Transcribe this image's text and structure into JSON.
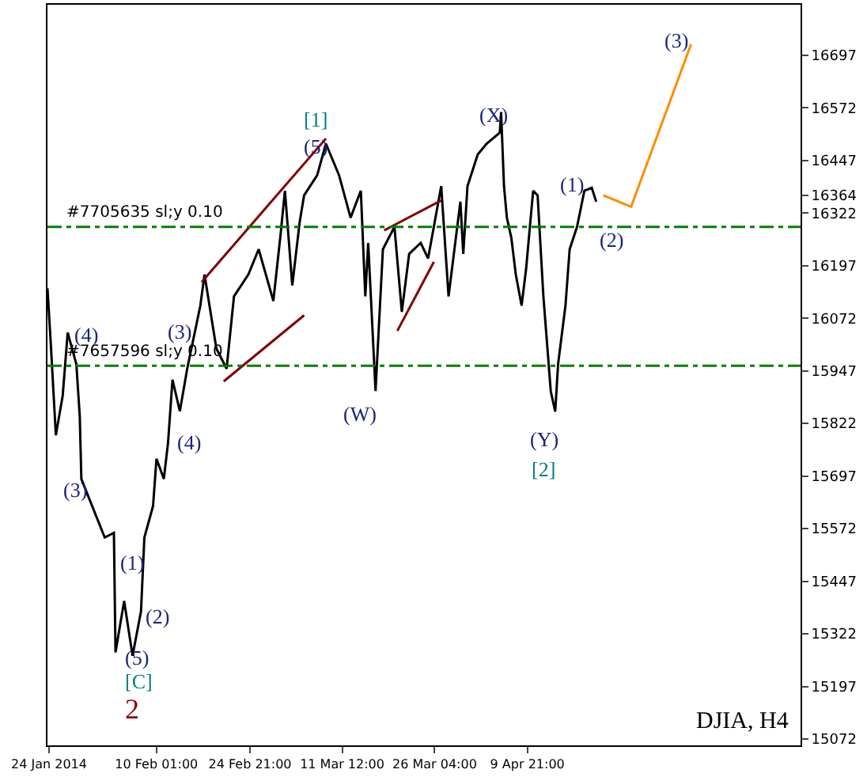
{
  "chart_data": {
    "type": "line",
    "xlim": [
      "2014-01-23T18:00",
      "2014-05-23T05:00"
    ],
    "ylim": [
      15057,
      16817
    ],
    "xticks": [
      {
        "value": "2014-01-24T00:00",
        "label": "24 Jan 2014"
      },
      {
        "value": "2014-02-10T01:00",
        "label": "10 Feb 01:00"
      },
      {
        "value": "2014-02-24T21:00",
        "label": "24 Feb 21:00"
      },
      {
        "value": "2014-03-11T12:00",
        "label": "11 Mar 12:00"
      },
      {
        "value": "2014-03-26T04:00",
        "label": "26 Mar 04:00"
      },
      {
        "value": "2014-04-09T21:00",
        "label": "9 Apr 21:00"
      }
    ],
    "yticks": [
      15072,
      15197,
      15322,
      15447,
      15572,
      15697,
      15822,
      15947,
      16072,
      16197,
      16322,
      16364,
      16447,
      16572,
      16697
    ],
    "series": [
      {
        "color": "#000000",
        "x": [
          "2014-01-23T18:00",
          "2014-01-24T06:00",
          "2014-01-25T02:00",
          "2014-01-26T04:00",
          "2014-01-26T23:00",
          "2014-01-28T08:00",
          "2014-01-28T21:00",
          "2014-01-29T03:00",
          "2014-02-01T20:00",
          "2014-02-03T07:00",
          "2014-02-03T13:00",
          "2014-02-04T22:00",
          "2014-02-06T06:00",
          "2014-02-07T14:00",
          "2014-02-08T03:00",
          "2014-02-09T12:00",
          "2014-02-10T01:00",
          "2014-02-11T05:00",
          "2014-02-11T21:00",
          "2014-02-12T14:00",
          "2014-02-13T18:00",
          "2014-02-14T22:00",
          "2014-02-17T00:00",
          "2014-02-17T16:00",
          "2014-02-19T13:00",
          "2014-02-21T04:00",
          "2014-02-22T08:00",
          "2014-02-24T15:00",
          "2014-02-26T06:00",
          "2014-02-28T14:00",
          "2014-03-01T18:00",
          "2014-03-02T10:00",
          "2014-03-03T14:00",
          "2014-03-04T18:00",
          "2014-03-05T11:00",
          "2014-03-07T13:00",
          "2014-03-08T22:00",
          "2014-03-11T00:00",
          "2014-03-12T20:00",
          "2014-03-14T11:00",
          "2014-03-15T04:00",
          "2014-03-15T15:00",
          "2014-03-16T19:00",
          "2014-03-17T23:00",
          "2014-03-19T19:00",
          "2014-03-20T23:00",
          "2014-03-22T03:00",
          "2014-03-23T23:00",
          "2014-03-25T03:00",
          "2014-03-27T05:00",
          "2014-03-28T09:00",
          "2014-03-30T06:00",
          "2014-03-30T17:00",
          "2014-03-31T09:00",
          "2014-04-02T00:00",
          "2014-04-03T10:00",
          "2014-04-05T12:00",
          "2014-04-05T17:00",
          "2014-04-06T04:00",
          "2014-04-06T15:00",
          "2014-04-07T08:00",
          "2014-04-08T01:00",
          "2014-04-08T23:00",
          "2014-04-09T16:00",
          "2014-04-10T19:00",
          "2014-04-11T12:00",
          "2014-04-12T10:00",
          "2014-04-13T14:00",
          "2014-04-14T07:00",
          "2014-04-14T18:00",
          "2014-04-15T22:00",
          "2014-04-16T14:00",
          "2014-04-17T18:00",
          "2014-04-18T22:00",
          "2014-04-20T02:00",
          "2014-04-20T19:00"
        ],
        "values": [
          16143,
          16019,
          15794,
          15888,
          16038,
          15963,
          15839,
          15690,
          15551,
          15562,
          15278,
          15400,
          15270,
          15375,
          15551,
          15626,
          15738,
          15690,
          15776,
          15926,
          15851,
          15952,
          16102,
          16176,
          16000,
          15952,
          16124,
          16176,
          16236,
          16113,
          16274,
          16375,
          16150,
          16300,
          16364,
          16412,
          16487,
          16412,
          16311,
          16375,
          16124,
          16251,
          15899,
          16236,
          16289,
          16087,
          16225,
          16251,
          16214,
          16386,
          16124,
          16349,
          16225,
          16386,
          16461,
          16487,
          16513,
          16562,
          16386,
          16311,
          16263,
          16176,
          16102,
          16188,
          16375,
          16364,
          16124,
          15899,
          15850,
          15963,
          16102,
          16236,
          16289,
          16375,
          16382,
          16349
        ]
      },
      {
        "color": "#ff8c00",
        "x": [
          "2014-04-21T22:00",
          "2014-04-26T08:00",
          "2014-05-05T20:00"
        ],
        "values": [
          16364,
          16337,
          16723
        ]
      },
      {
        "color": "#800000",
        "x": [
          "2014-02-17T05:00",
          "2014-03-08T22:00"
        ],
        "values": [
          16158,
          16499
        ]
      },
      {
        "color": "#800000",
        "x": [
          "2014-02-20T17:00",
          "2014-03-05T11:00"
        ],
        "values": [
          15922,
          16079
        ]
      },
      {
        "color": "#800000",
        "x": [
          "2014-03-18T04:00",
          "2014-03-27T05:00"
        ],
        "values": [
          16281,
          16352
        ]
      },
      {
        "color": "#800000",
        "x": [
          "2014-03-20T06:00",
          "2014-03-26T01:00"
        ],
        "values": [
          16042,
          16206
        ]
      }
    ],
    "ref_lines": [
      {
        "axis": "y",
        "value": 16289,
        "label": "#7705635 sl;y 0.10",
        "color": "#008000",
        "line_style": "dashed"
      },
      {
        "axis": "y",
        "value": 15959,
        "label": "#7657596 sl;y 0.10",
        "color": "#008000",
        "line_style": "dashed"
      }
    ],
    "annotations": [
      "(4)",
      "(3)",
      "(3)",
      "(4)",
      "(1)",
      "(2)",
      "(5)",
      "[C]",
      "2",
      "(5)",
      "[1]",
      "(W)",
      "(X)",
      "(Y)",
      "[2]",
      "(1)",
      "(2)",
      "(3)",
      "DJIA, H4"
    ]
  }
}
